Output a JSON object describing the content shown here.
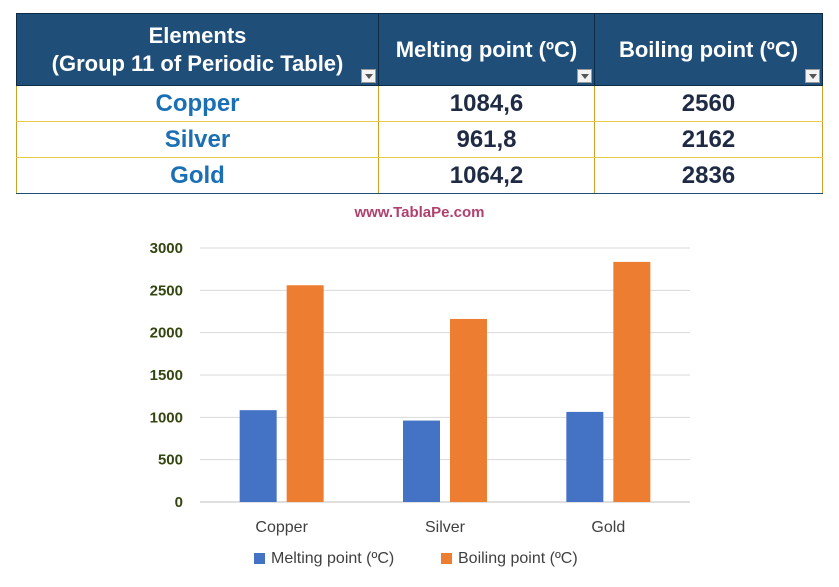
{
  "table": {
    "headers": [
      {
        "line1": "Elements",
        "line2": "(Group 11 of Periodic Table)"
      },
      {
        "line1": "Melting point (ºC)",
        "line2": ""
      },
      {
        "line1": "Boiling point (ºC)",
        "line2": ""
      }
    ],
    "rows": [
      {
        "element": "Copper",
        "melting": "1084,6",
        "boiling": "2560"
      },
      {
        "element": "Silver",
        "melting": "961,8",
        "boiling": "2162"
      },
      {
        "element": "Gold",
        "melting": "1064,2",
        "boiling": "2836"
      }
    ],
    "colors": {
      "header_bg": "#1f4e79",
      "element_text": "#1b6fb5",
      "grid": "#c9a227"
    }
  },
  "watermark": "www.TablaPe.com",
  "chart_data": {
    "type": "bar",
    "categories": [
      "Copper",
      "Silver",
      "Gold"
    ],
    "series": [
      {
        "name": "Melting point (ºC)",
        "values": [
          1084.6,
          961.8,
          1064.2
        ],
        "color": "#4472c4"
      },
      {
        "name": "Boiling point (ºC)",
        "values": [
          2560,
          2162,
          2836
        ],
        "color": "#ed7d31"
      }
    ],
    "ylim": [
      0,
      3000
    ],
    "yticks": [
      0,
      500,
      1000,
      1500,
      2000,
      2500,
      3000
    ],
    "grid": true,
    "legend": "bottom",
    "title": "",
    "xlabel": "",
    "ylabel": ""
  }
}
